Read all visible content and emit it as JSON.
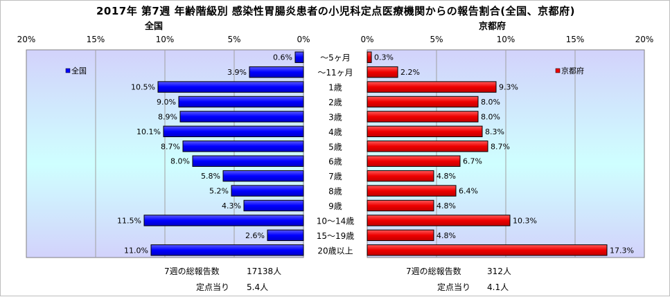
{
  "title": "2017年 第7週 年齢階級別 感染性胃腸炎患者の小児科定点医療機関からの報告割合(全国、京都府)",
  "categories": [
    "～5ヶ月",
    "～11ヶ月",
    "1歳",
    "2歳",
    "3歳",
    "4歳",
    "5歳",
    "6歳",
    "7歳",
    "8歳",
    "9歳",
    "10～14歳",
    "15～19歳",
    "20歳以上"
  ],
  "colors": {
    "national": "#0000ff",
    "kyoto": "#ee0000",
    "plot_bg_top": "#d2d2fb",
    "plot_bg_mid": "#cfffff"
  },
  "chart_data": [
    {
      "type": "bar",
      "orientation": "horizontal",
      "title": "全国",
      "direction": "right-to-left",
      "categories": [
        "～5ヶ月",
        "～11ヶ月",
        "1歳",
        "2歳",
        "3歳",
        "4歳",
        "5歳",
        "6歳",
        "7歳",
        "8歳",
        "9歳",
        "10～14歳",
        "15～19歳",
        "20歳以上"
      ],
      "series": [
        {
          "name": "全国",
          "values": [
            0.6,
            3.9,
            10.5,
            9.0,
            8.9,
            10.1,
            8.7,
            8.0,
            5.8,
            5.2,
            4.3,
            11.5,
            2.6,
            11.0
          ]
        }
      ],
      "data_labels": [
        "0.6%",
        "3.9%",
        "10.5%",
        "9.0%",
        "8.9%",
        "10.1%",
        "8.7%",
        "8.0%",
        "5.8%",
        "5.2%",
        "4.3%",
        "11.5%",
        "2.6%",
        "11.0%"
      ],
      "xlim": [
        0,
        20
      ],
      "xticks": [
        "20%",
        "15%",
        "10%",
        "5%",
        "0%"
      ],
      "legend": "top-left",
      "grid": true
    },
    {
      "type": "bar",
      "orientation": "horizontal",
      "title": "京都府",
      "direction": "left-to-right",
      "categories": [
        "～5ヶ月",
        "～11ヶ月",
        "1歳",
        "2歳",
        "3歳",
        "4歳",
        "5歳",
        "6歳",
        "7歳",
        "8歳",
        "9歳",
        "10～14歳",
        "15～19歳",
        "20歳以上"
      ],
      "series": [
        {
          "name": "京都府",
          "values": [
            0.3,
            2.2,
            9.3,
            8.0,
            8.0,
            8.3,
            8.7,
            6.7,
            4.8,
            6.4,
            4.8,
            10.3,
            4.8,
            17.3
          ]
        }
      ],
      "data_labels": [
        "0.3%",
        "2.2%",
        "9.3%",
        "8.0%",
        "8.0%",
        "8.3%",
        "8.7%",
        "6.7%",
        "4.8%",
        "6.4%",
        "4.8%",
        "10.3%",
        "4.8%",
        "17.3%"
      ],
      "xlim": [
        0,
        20
      ],
      "xticks": [
        "0%",
        "5%",
        "10%",
        "15%",
        "20%"
      ],
      "legend": "top-right",
      "grid": true
    }
  ],
  "footer": {
    "national_total_label": "7週の総報告数",
    "national_total_value": "17138人",
    "national_per_label": "定点当り",
    "national_per_value": "5.4人",
    "kyoto_total_label": "7週の総報告数",
    "kyoto_total_value": "312人",
    "kyoto_per_label": "定点当り",
    "kyoto_per_value": "4.1人"
  }
}
